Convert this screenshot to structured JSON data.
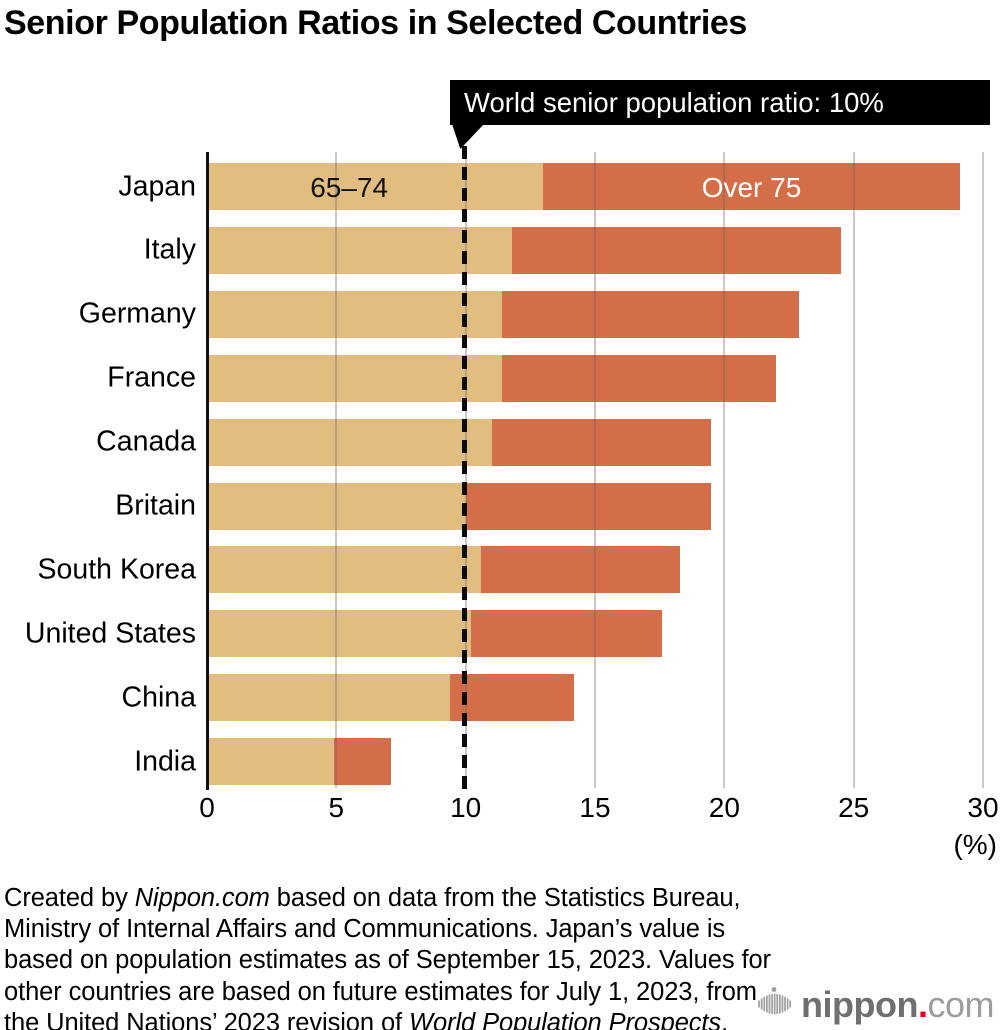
{
  "title": "Senior Population Ratios in Selected Countries",
  "annotation": {
    "label": "World senior population ratio: 10%"
  },
  "chart_data": {
    "type": "bar",
    "orientation": "horizontal",
    "stacked": true,
    "title": "Senior Population Ratios in Selected Countries",
    "categories": [
      "Japan",
      "Italy",
      "Germany",
      "France",
      "Canada",
      "Britain",
      "South Korea",
      "United States",
      "China",
      "India"
    ],
    "series": [
      {
        "name": "65–74",
        "color": "#e2bd80",
        "label_color": "#111111",
        "values": [
          13.0,
          11.8,
          11.4,
          11.4,
          11.0,
          10.0,
          10.6,
          10.2,
          9.4,
          4.9
        ]
      },
      {
        "name": "Over 75",
        "color": "#d46e49",
        "label_color": "#ffffff",
        "values": [
          16.1,
          12.7,
          11.5,
          10.6,
          8.5,
          9.5,
          7.7,
          7.4,
          4.8,
          2.2
        ]
      }
    ],
    "totals": [
      29.1,
      24.5,
      22.9,
      22.0,
      19.5,
      19.5,
      18.3,
      17.6,
      14.2,
      7.1
    ],
    "x_ticks": [
      0,
      5,
      10,
      15,
      20,
      25,
      30
    ],
    "xlim": [
      0,
      30
    ],
    "xlabel": "(%)",
    "grid": true,
    "legend_position": "inside-first-bar",
    "reference_line": {
      "value": 10,
      "label": "World senior population ratio: 10%"
    }
  },
  "footer": {
    "lines": [
      [
        {
          "t": "Created by "
        },
        {
          "t": "Nippon.com",
          "i": true
        },
        {
          "t": " based on data from the Statistics Bureau,"
        }
      ],
      [
        {
          "t": "Ministry of Internal Affairs and Communications. Japan’s value is"
        }
      ],
      [
        {
          "t": "based on population estimates as of September 15, 2023. Values for"
        }
      ],
      [
        {
          "t": "other countries are based on future estimates for July 1, 2023, from"
        }
      ],
      [
        {
          "t": "the United Nations’ 2023 revision of "
        },
        {
          "t": "World Population Prospects",
          "i": true
        },
        {
          "t": "."
        }
      ]
    ]
  },
  "logo": {
    "bold": "nippon",
    "dot": ".",
    "light": "com"
  },
  "colors": {
    "bar_65_74": "#e2bd80",
    "bar_over_75": "#d46e49",
    "annotation_bg": "#000000",
    "annotation_text": "#ffffff",
    "gridline": "#c9c9c9",
    "axis": "#111111",
    "logo_gray": "#6f6f6f",
    "logo_light_gray": "#9d9d9d",
    "logo_dot_red": "#e60012"
  }
}
